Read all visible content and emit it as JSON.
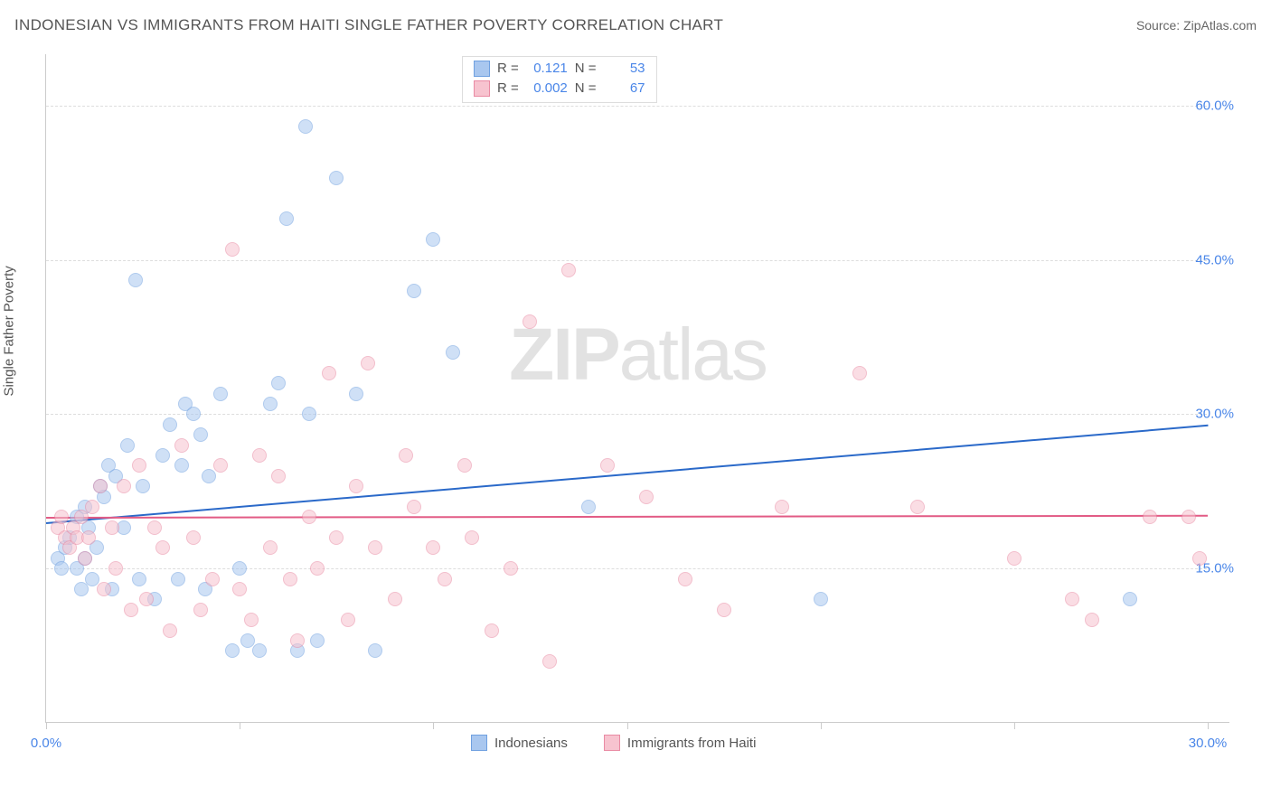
{
  "header": {
    "title": "INDONESIAN VS IMMIGRANTS FROM HAITI SINGLE FATHER POVERTY CORRELATION CHART",
    "source_label": "Source:",
    "source_name": "ZipAtlas.com"
  },
  "y_axis": {
    "label": "Single Father Poverty"
  },
  "watermark": {
    "zip": "ZIP",
    "atlas": "atlas"
  },
  "chart": {
    "type": "scatter",
    "xlim": [
      0,
      30
    ],
    "ylim": [
      0,
      65
    ],
    "x_ticks": [
      0,
      5,
      10,
      15,
      20,
      25,
      30
    ],
    "x_tick_labels": [
      "0.0%",
      "",
      "",
      "",
      "",
      "",
      "30.0%"
    ],
    "y_gridlines": [
      15,
      30,
      45,
      60
    ],
    "y_tick_labels": [
      "15.0%",
      "30.0%",
      "45.0%",
      "60.0%"
    ],
    "background_color": "#ffffff",
    "grid_color": "#dddddd",
    "axis_color": "#cccccc",
    "marker_radius": 8,
    "marker_opacity": 0.55,
    "series": [
      {
        "name": "Indonesians",
        "color_fill": "#a9c7ef",
        "color_stroke": "#6fa0e0",
        "R": "0.121",
        "N": "53",
        "trend": {
          "x1": 0,
          "y1": 19.5,
          "x2": 30,
          "y2": 29.0,
          "color": "#2a69c9",
          "width": 2
        },
        "points": [
          [
            0.3,
            16
          ],
          [
            0.4,
            15
          ],
          [
            0.5,
            17
          ],
          [
            0.6,
            18
          ],
          [
            0.8,
            20
          ],
          [
            0.8,
            15
          ],
          [
            0.9,
            13
          ],
          [
            1.0,
            16
          ],
          [
            1.0,
            21
          ],
          [
            1.1,
            19
          ],
          [
            1.2,
            14
          ],
          [
            1.3,
            17
          ],
          [
            1.4,
            23
          ],
          [
            1.5,
            22
          ],
          [
            1.6,
            25
          ],
          [
            1.7,
            13
          ],
          [
            1.8,
            24
          ],
          [
            2.0,
            19
          ],
          [
            2.1,
            27
          ],
          [
            2.3,
            43
          ],
          [
            2.4,
            14
          ],
          [
            2.5,
            23
          ],
          [
            2.8,
            12
          ],
          [
            3.0,
            26
          ],
          [
            3.2,
            29
          ],
          [
            3.4,
            14
          ],
          [
            3.5,
            25
          ],
          [
            3.6,
            31
          ],
          [
            3.8,
            30
          ],
          [
            4.0,
            28
          ],
          [
            4.1,
            13
          ],
          [
            4.2,
            24
          ],
          [
            4.5,
            32
          ],
          [
            4.8,
            7
          ],
          [
            5.0,
            15
          ],
          [
            5.2,
            8
          ],
          [
            5.5,
            7
          ],
          [
            5.8,
            31
          ],
          [
            6.0,
            33
          ],
          [
            6.2,
            49
          ],
          [
            6.5,
            7
          ],
          [
            6.7,
            58
          ],
          [
            6.8,
            30
          ],
          [
            7.0,
            8
          ],
          [
            7.5,
            53
          ],
          [
            8.0,
            32
          ],
          [
            8.5,
            7
          ],
          [
            9.5,
            42
          ],
          [
            10.0,
            47
          ],
          [
            10.5,
            36
          ],
          [
            14.0,
            21
          ],
          [
            20.0,
            12
          ],
          [
            28.0,
            12
          ]
        ]
      },
      {
        "name": "Immigrants from Haiti",
        "color_fill": "#f7c3cf",
        "color_stroke": "#e98aa3",
        "R": "0.002",
        "N": "67",
        "trend": {
          "x1": 0,
          "y1": 20.0,
          "x2": 30,
          "y2": 20.2,
          "color": "#e25b85",
          "width": 2
        },
        "points": [
          [
            0.3,
            19
          ],
          [
            0.4,
            20
          ],
          [
            0.5,
            18
          ],
          [
            0.6,
            17
          ],
          [
            0.7,
            19
          ],
          [
            0.8,
            18
          ],
          [
            0.9,
            20
          ],
          [
            1.0,
            16
          ],
          [
            1.1,
            18
          ],
          [
            1.2,
            21
          ],
          [
            1.4,
            23
          ],
          [
            1.5,
            13
          ],
          [
            1.7,
            19
          ],
          [
            1.8,
            15
          ],
          [
            2.0,
            23
          ],
          [
            2.2,
            11
          ],
          [
            2.4,
            25
          ],
          [
            2.6,
            12
          ],
          [
            2.8,
            19
          ],
          [
            3.0,
            17
          ],
          [
            3.2,
            9
          ],
          [
            3.5,
            27
          ],
          [
            3.8,
            18
          ],
          [
            4.0,
            11
          ],
          [
            4.3,
            14
          ],
          [
            4.5,
            25
          ],
          [
            4.8,
            46
          ],
          [
            5.0,
            13
          ],
          [
            5.3,
            10
          ],
          [
            5.5,
            26
          ],
          [
            5.8,
            17
          ],
          [
            6.0,
            24
          ],
          [
            6.3,
            14
          ],
          [
            6.5,
            8
          ],
          [
            6.8,
            20
          ],
          [
            7.0,
            15
          ],
          [
            7.3,
            34
          ],
          [
            7.5,
            18
          ],
          [
            7.8,
            10
          ],
          [
            8.0,
            23
          ],
          [
            8.3,
            35
          ],
          [
            8.5,
            17
          ],
          [
            9.0,
            12
          ],
          [
            9.3,
            26
          ],
          [
            9.5,
            21
          ],
          [
            10.0,
            17
          ],
          [
            10.3,
            14
          ],
          [
            10.8,
            25
          ],
          [
            11.0,
            18
          ],
          [
            11.5,
            9
          ],
          [
            12.0,
            15
          ],
          [
            12.5,
            39
          ],
          [
            13.0,
            6
          ],
          [
            13.5,
            44
          ],
          [
            14.5,
            25
          ],
          [
            15.5,
            22
          ],
          [
            16.5,
            14
          ],
          [
            17.5,
            11
          ],
          [
            19.0,
            21
          ],
          [
            21.0,
            34
          ],
          [
            22.5,
            21
          ],
          [
            25.0,
            16
          ],
          [
            26.5,
            12
          ],
          [
            27.0,
            10
          ],
          [
            28.5,
            20
          ],
          [
            29.5,
            20
          ],
          [
            29.8,
            16
          ]
        ]
      }
    ]
  },
  "legend_top": {
    "R_label": "R =",
    "N_label": "N ="
  },
  "legend_bottom": {
    "items": [
      "Indonesians",
      "Immigrants from Haiti"
    ]
  }
}
